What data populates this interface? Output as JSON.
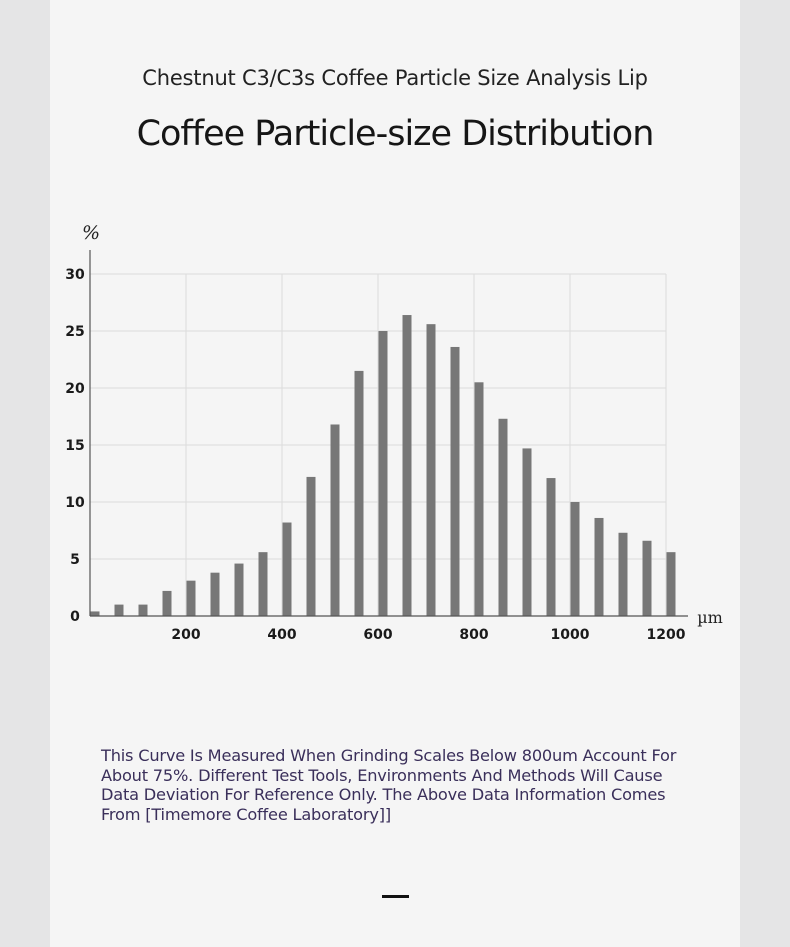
{
  "header": {
    "subtitle": "Chestnut C3/C3s Coffee Particle Size Analysis Lip",
    "title": "Coffee Particle-size Distribution"
  },
  "note": {
    "text": "This Curve Is Measured When Grinding Scales Below 800um Account For About 75%. Different Test Tools, Environments And Methods Will Cause Data Deviation For Reference Only. The Above Data Information Comes From [Timemore Coffee Laboratory]]"
  },
  "colors": {
    "bar": "#777777",
    "grid": "#dcdcdc",
    "axis": "#555555",
    "background": "#f5f5f5",
    "page": "#e5e5e6"
  },
  "chart_data": {
    "type": "bar",
    "title": "Coffee Particle-size Distribution",
    "xlabel": "µm",
    "ylabel": "%",
    "x": [
      0,
      50,
      100,
      150,
      200,
      250,
      300,
      350,
      400,
      450,
      500,
      550,
      600,
      650,
      700,
      750,
      800,
      850,
      900,
      950,
      1000,
      1050,
      1100,
      1150,
      1200
    ],
    "values": [
      0.4,
      1.0,
      1.0,
      2.2,
      3.1,
      3.8,
      4.6,
      5.6,
      8.2,
      12.2,
      16.8,
      21.5,
      25.0,
      26.4,
      25.6,
      23.6,
      20.5,
      17.3,
      14.7,
      12.1,
      10.0,
      8.6,
      7.3,
      6.6,
      5.6
    ],
    "xlim": [
      0,
      1200
    ],
    "ylim": [
      0,
      30
    ],
    "xticks": [
      "200",
      "400",
      "600",
      "800",
      "1000",
      "1200"
    ],
    "xtick_values": [
      200,
      400,
      600,
      800,
      1000,
      1200
    ],
    "yticks": [
      "0",
      "5",
      "10",
      "15",
      "20",
      "25",
      "30"
    ],
    "ytick_values": [
      0,
      5,
      10,
      15,
      20,
      25,
      30
    ],
    "grid": true,
    "legend": "none"
  }
}
